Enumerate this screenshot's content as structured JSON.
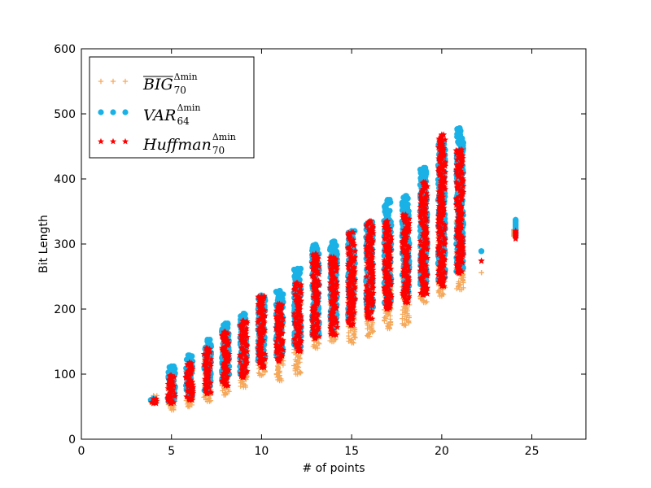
{
  "chart_data": {
    "type": "scatter",
    "title": "",
    "xlabel": "# of points",
    "ylabel": "Bit Length",
    "xlim": [
      0,
      28
    ],
    "ylim": [
      0,
      600
    ],
    "xticks": [
      0,
      5,
      10,
      15,
      20,
      25
    ],
    "yticks": [
      0,
      100,
      200,
      300,
      400,
      500,
      600
    ],
    "grid": false,
    "legend_position": "top-left",
    "series": [
      {
        "name_base": "BIG",
        "name_overline": true,
        "name_sub": "70",
        "name_sup": "Δmin",
        "marker": "plus",
        "color": "#f5a85a",
        "points": [
          {
            "x": 4,
            "ymin": 55,
            "ymax": 67
          },
          {
            "x": 5,
            "ymin": 45,
            "ymax": 95
          },
          {
            "x": 6,
            "ymin": 50,
            "ymax": 110
          },
          {
            "x": 7,
            "ymin": 58,
            "ymax": 125
          },
          {
            "x": 8,
            "ymin": 68,
            "ymax": 148
          },
          {
            "x": 9,
            "ymin": 80,
            "ymax": 155
          },
          {
            "x": 10,
            "ymin": 98,
            "ymax": 182
          },
          {
            "x": 11,
            "ymin": 90,
            "ymax": 192
          },
          {
            "x": 12,
            "ymin": 100,
            "ymax": 218
          },
          {
            "x": 13,
            "ymin": 140,
            "ymax": 240
          },
          {
            "x": 14,
            "ymin": 150,
            "ymax": 255
          },
          {
            "x": 15,
            "ymin": 148,
            "ymax": 272
          },
          {
            "x": 16,
            "ymin": 158,
            "ymax": 288
          },
          {
            "x": 17,
            "ymin": 170,
            "ymax": 295
          },
          {
            "x": 18,
            "ymin": 175,
            "ymax": 305
          },
          {
            "x": 19,
            "ymin": 210,
            "ymax": 335
          },
          {
            "x": 20,
            "ymin": 220,
            "ymax": 345
          },
          {
            "x": 21,
            "ymin": 230,
            "ymax": 355
          },
          {
            "x": 22.2,
            "ymin": 256,
            "ymax": 256
          },
          {
            "x": 24,
            "ymin": 312,
            "ymax": 322
          }
        ]
      },
      {
        "name_base": "VAR",
        "name_overline": false,
        "name_sub": "64",
        "name_sup": "Δmin",
        "marker": "circle",
        "color": "#1ab2e6",
        "points": [
          {
            "x": 4,
            "ymin": 57,
            "ymax": 62
          },
          {
            "x": 5,
            "ymin": 58,
            "ymax": 112
          },
          {
            "x": 6,
            "ymin": 65,
            "ymax": 129
          },
          {
            "x": 7,
            "ymin": 75,
            "ymax": 153
          },
          {
            "x": 8,
            "ymin": 88,
            "ymax": 178
          },
          {
            "x": 9,
            "ymin": 100,
            "ymax": 193
          },
          {
            "x": 10,
            "ymin": 118,
            "ymax": 221
          },
          {
            "x": 11,
            "ymin": 130,
            "ymax": 228
          },
          {
            "x": 12,
            "ymin": 140,
            "ymax": 262
          },
          {
            "x": 13,
            "ymin": 160,
            "ymax": 299
          },
          {
            "x": 14,
            "ymin": 170,
            "ymax": 304
          },
          {
            "x": 15,
            "ymin": 185,
            "ymax": 320
          },
          {
            "x": 16,
            "ymin": 195,
            "ymax": 334
          },
          {
            "x": 17,
            "ymin": 210,
            "ymax": 368
          },
          {
            "x": 18,
            "ymin": 225,
            "ymax": 374
          },
          {
            "x": 19,
            "ymin": 238,
            "ymax": 417
          },
          {
            "x": 20,
            "ymin": 245,
            "ymax": 455
          },
          {
            "x": 21,
            "ymin": 258,
            "ymax": 478
          },
          {
            "x": 22.2,
            "ymin": 289,
            "ymax": 289
          },
          {
            "x": 24.1,
            "ymin": 313,
            "ymax": 337
          }
        ]
      },
      {
        "name_base": "Huffman",
        "name_overline": false,
        "name_sub": "70",
        "name_sup": "Δmin",
        "marker": "star",
        "color": "#ff0000",
        "points": [
          {
            "x": 4,
            "ymin": 55,
            "ymax": 62
          },
          {
            "x": 5,
            "ymin": 55,
            "ymax": 98
          },
          {
            "x": 6,
            "ymin": 60,
            "ymax": 118
          },
          {
            "x": 7,
            "ymin": 70,
            "ymax": 140
          },
          {
            "x": 8,
            "ymin": 82,
            "ymax": 165
          },
          {
            "x": 9,
            "ymin": 95,
            "ymax": 182
          },
          {
            "x": 10,
            "ymin": 110,
            "ymax": 220
          },
          {
            "x": 11,
            "ymin": 120,
            "ymax": 208
          },
          {
            "x": 12,
            "ymin": 135,
            "ymax": 240
          },
          {
            "x": 13,
            "ymin": 155,
            "ymax": 285
          },
          {
            "x": 14,
            "ymin": 160,
            "ymax": 280
          },
          {
            "x": 15,
            "ymin": 175,
            "ymax": 318
          },
          {
            "x": 16,
            "ymin": 185,
            "ymax": 335
          },
          {
            "x": 17,
            "ymin": 200,
            "ymax": 335
          },
          {
            "x": 18,
            "ymin": 210,
            "ymax": 345
          },
          {
            "x": 19,
            "ymin": 222,
            "ymax": 395
          },
          {
            "x": 20,
            "ymin": 235,
            "ymax": 468
          },
          {
            "x": 21,
            "ymin": 255,
            "ymax": 445
          },
          {
            "x": 22.2,
            "ymin": 274,
            "ymax": 274
          },
          {
            "x": 24.1,
            "ymin": 308,
            "ymax": 320
          }
        ]
      }
    ]
  }
}
